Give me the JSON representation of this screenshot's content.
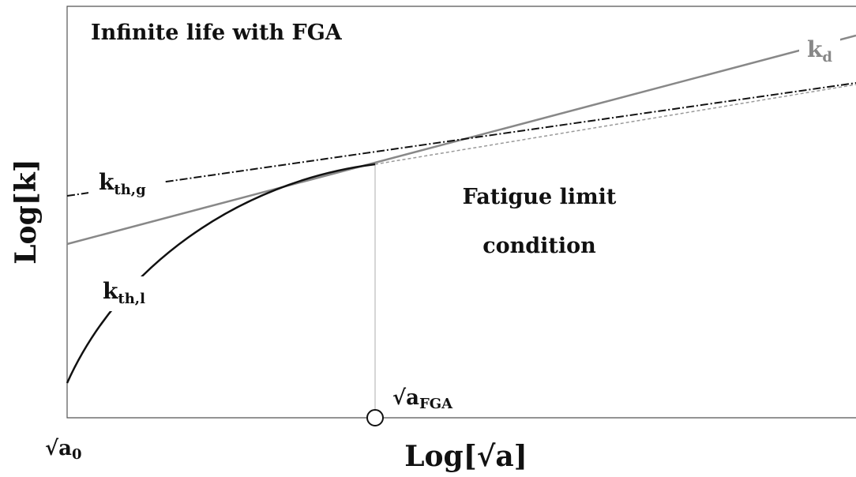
{
  "title": "Infinite life with FGA",
  "region_label": {
    "line1": "Fatigue limit",
    "line2": "condition"
  },
  "curve_labels": {
    "kd": {
      "main": "k",
      "sub": "d"
    },
    "kthg": {
      "main": "k",
      "sub": "th,g"
    },
    "kthl": {
      "main": "k",
      "sub": "th,l"
    }
  },
  "markers": {
    "a_fga": {
      "main": "√a",
      "sub": "FGA"
    },
    "a0": {
      "main": "√a",
      "sub": "0"
    }
  },
  "axes": {
    "x_label": "Log[√a]",
    "y_label": "Log[k]"
  }
}
